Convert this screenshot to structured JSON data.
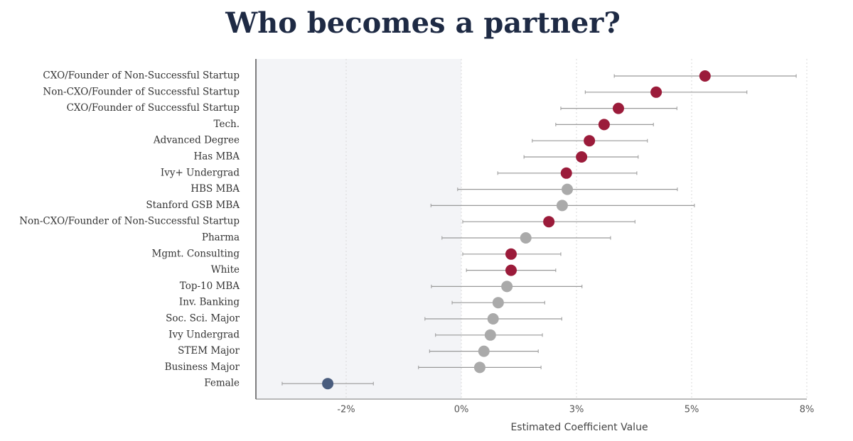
{
  "chart_data": {
    "type": "dot-errorbar",
    "title": "Who becomes a partner?",
    "xlabel": "Estimated Coefficient Value",
    "categories": [
      "CXO/Founder of Non-Successful Startup",
      "Non-CXO/Founder of Successful Startup",
      "CXO/Founder of Successful Startup",
      "Tech.",
      "Advanced Degree",
      "Has MBA",
      "Ivy+ Undergrad",
      "HBS MBA",
      "Stanford GSB MBA",
      "Non-CXO/Founder of Non-Successful Startup",
      "Pharma",
      "Mgmt. Consulting",
      "White",
      "Top-10 MBA",
      "Inv. Banking",
      "Soc. Sci. Major",
      "Ivy Undergrad",
      "STEM Major",
      "Business Major",
      "Female"
    ],
    "values": [
      5.29,
      4.23,
      3.41,
      3.1,
      2.78,
      2.61,
      2.28,
      2.3,
      2.19,
      1.9,
      1.4,
      1.08,
      1.08,
      0.99,
      0.8,
      0.69,
      0.63,
      0.49,
      0.4,
      -2.9
    ],
    "lower": [
      3.32,
      2.69,
      2.16,
      2.05,
      1.54,
      1.36,
      0.79,
      -0.08,
      -0.66,
      0.03,
      -0.42,
      0.03,
      0.11,
      -0.65,
      -0.2,
      -0.79,
      -0.56,
      -0.69,
      -0.93,
      -3.89
    ],
    "upper": [
      7.27,
      6.2,
      4.68,
      4.17,
      4.04,
      3.84,
      3.81,
      4.69,
      5.06,
      3.77,
      3.24,
      2.16,
      2.05,
      2.62,
      1.81,
      2.18,
      1.76,
      1.67,
      1.73,
      -1.91
    ],
    "colors": [
      "#9b1b3a",
      "#9b1b3a",
      "#9b1b3a",
      "#9b1b3a",
      "#9b1b3a",
      "#9b1b3a",
      "#9b1b3a",
      "#aaaaaa",
      "#aaaaaa",
      "#9b1b3a",
      "#aaaaaa",
      "#9b1b3a",
      "#9b1b3a",
      "#aaaaaa",
      "#aaaaaa",
      "#aaaaaa",
      "#aaaaaa",
      "#aaaaaa",
      "#aaaaaa",
      "#4a5d7e"
    ],
    "xlim": [
      -4.46,
      7.5
    ],
    "xticks": [
      {
        "value": -2.5,
        "label": "-2%"
      },
      {
        "value": 0,
        "label": "0%"
      },
      {
        "value": 2.5,
        "label": "3%"
      },
      {
        "value": 5,
        "label": "5%"
      },
      {
        "value": 7.5,
        "label": "8%"
      }
    ],
    "grid": true,
    "shade_negative": true
  }
}
